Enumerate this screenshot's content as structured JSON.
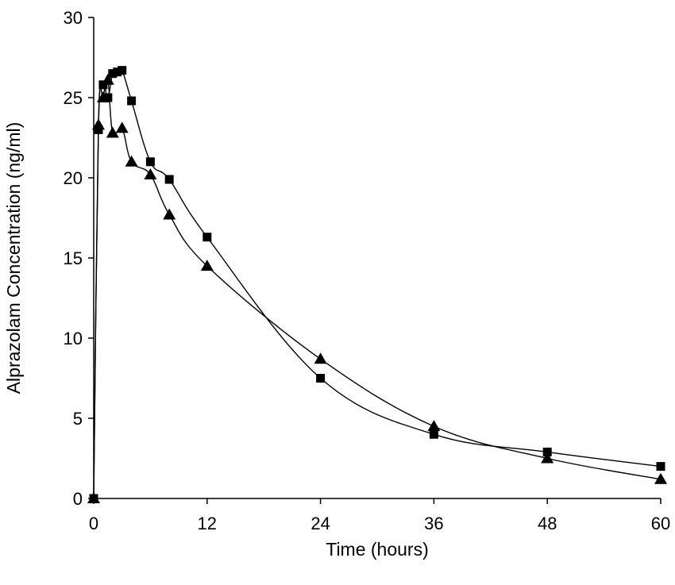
{
  "chart_data": {
    "type": "line",
    "title": "",
    "xlabel": "Time (hours)",
    "ylabel": "Alprazolam Concentration (ng/ml)",
    "xlim": [
      0,
      60
    ],
    "ylim": [
      0,
      30
    ],
    "xticks": [
      0,
      12,
      24,
      36,
      48,
      60
    ],
    "yticks": [
      0,
      5,
      10,
      15,
      20,
      25,
      30
    ],
    "grid": false,
    "legend": "none",
    "series": [
      {
        "marker": "square",
        "color": "#000000",
        "x": [
          0,
          0.5,
          1,
          1.5,
          2,
          2.5,
          3,
          4,
          6,
          8,
          12,
          24,
          36,
          48,
          60
        ],
        "y": [
          0,
          23.0,
          25.8,
          25.0,
          26.5,
          26.6,
          26.7,
          24.8,
          21.0,
          19.9,
          16.3,
          7.5,
          4.0,
          2.9,
          2.0
        ]
      },
      {
        "marker": "triangle",
        "color": "#000000",
        "x": [
          0,
          0.5,
          1,
          1.5,
          2,
          3,
          4,
          6,
          8,
          12,
          24,
          36,
          48,
          60
        ],
        "y": [
          0,
          23.3,
          25.0,
          26.1,
          22.8,
          23.1,
          21.0,
          20.2,
          17.7,
          14.5,
          8.7,
          4.5,
          2.5,
          1.2
        ]
      }
    ]
  }
}
